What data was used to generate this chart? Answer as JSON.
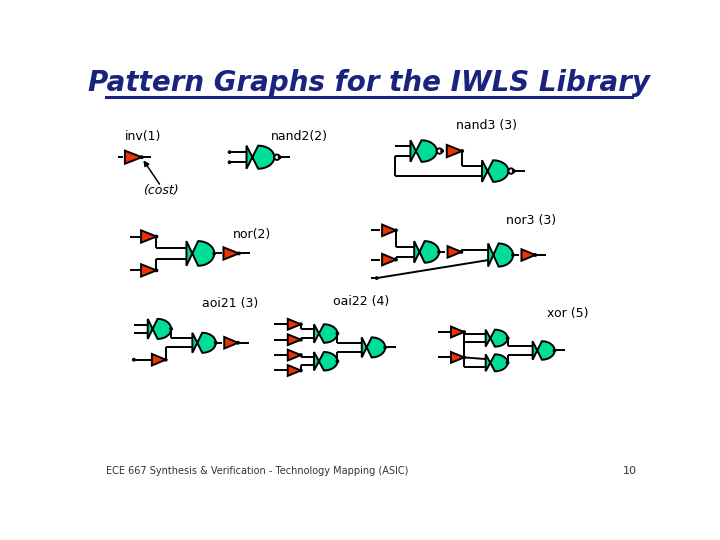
{
  "title": "Pattern Graphs for the IWLS Library",
  "title_color": "#1a237e",
  "title_fontsize": 20,
  "bg_color": "#ffffff",
  "gate_green": "#00dd99",
  "gate_red": "#ee3300",
  "line_color": "#000000",
  "footer": "ECE 667 Synthesis & Verification - Technology Mapping (ASIC)",
  "page_number": "10",
  "lw": 1.4,
  "dot_r": 2.5
}
